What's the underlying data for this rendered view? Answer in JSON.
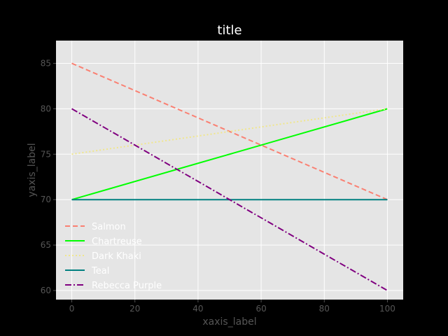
{
  "chart_data": {
    "type": "line",
    "title": "title",
    "xlabel": "xaxis_label",
    "ylabel": "yaxis_label",
    "xlim": [
      -5,
      105
    ],
    "ylim": [
      59,
      87.5
    ],
    "xticks": [
      0,
      20,
      40,
      60,
      80,
      100
    ],
    "yticks": [
      60,
      65,
      70,
      75,
      80,
      85
    ],
    "grid": true,
    "legend_position": "lower-left",
    "colors": {
      "figure_background": "#000000",
      "plot_background": "#e5e5e5",
      "grid": "#ffffff",
      "title": "#ffffff",
      "axis_label": "#555555",
      "tick_label": "#555555",
      "legend_text": "#ffffff"
    },
    "series": [
      {
        "name": "Salmon",
        "color": "#fa8072",
        "dash": "dashed",
        "x": [
          0,
          100
        ],
        "y": [
          85,
          70
        ]
      },
      {
        "name": "Chartreuse",
        "color": "#00ff00",
        "dash": "solid",
        "x": [
          0,
          100
        ],
        "y": [
          70,
          80
        ]
      },
      {
        "name": "Dark Khaki",
        "color": "#f0e68c",
        "dash": "dotted",
        "x": [
          0,
          100
        ],
        "y": [
          75,
          80
        ]
      },
      {
        "name": "Teal",
        "color": "#008080",
        "dash": "solid",
        "x": [
          0,
          100
        ],
        "y": [
          70,
          70
        ]
      },
      {
        "name": "Rebecca Purple",
        "color": "#800080",
        "dash": "dashdot",
        "x": [
          0,
          100
        ],
        "y": [
          80,
          60
        ]
      }
    ]
  }
}
